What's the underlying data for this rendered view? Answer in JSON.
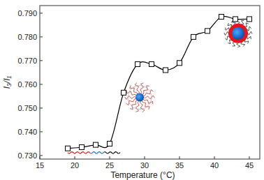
{
  "chart_data": {
    "type": "line",
    "x_label": "Temperature (°C)",
    "y_label": "I₃/I₁",
    "x": [
      19,
      21,
      23,
      25,
      27,
      29,
      31,
      33,
      35,
      37,
      39,
      41,
      43,
      45
    ],
    "series": [
      {
        "name": "I₃/I₁",
        "color": "#000000",
        "marker": "square",
        "line_style": "smooth",
        "values": [
          0.733,
          0.7335,
          0.7345,
          0.735,
          0.7565,
          0.7685,
          0.7685,
          0.766,
          0.769,
          0.78,
          0.7825,
          0.7885,
          0.7875,
          0.7875
        ]
      }
    ],
    "xlim": [
      15,
      46.5
    ],
    "ylim": [
      0.7285,
      0.7932
    ],
    "xticks": [
      15,
      20,
      25,
      30,
      35,
      40,
      45
    ],
    "yticks": [
      {
        "value": 0.73,
        "label": "0.730"
      },
      {
        "value": 0.74,
        "label": "0.740"
      },
      {
        "value": 0.75,
        "label": "0.750"
      },
      {
        "value": 0.76,
        "label": "0.760"
      },
      {
        "value": 0.77,
        "label": "0.770"
      },
      {
        "value": 0.78,
        "label": "0.780"
      },
      {
        "value": 0.79,
        "label": "0.790"
      }
    ],
    "grid": false
  }
}
